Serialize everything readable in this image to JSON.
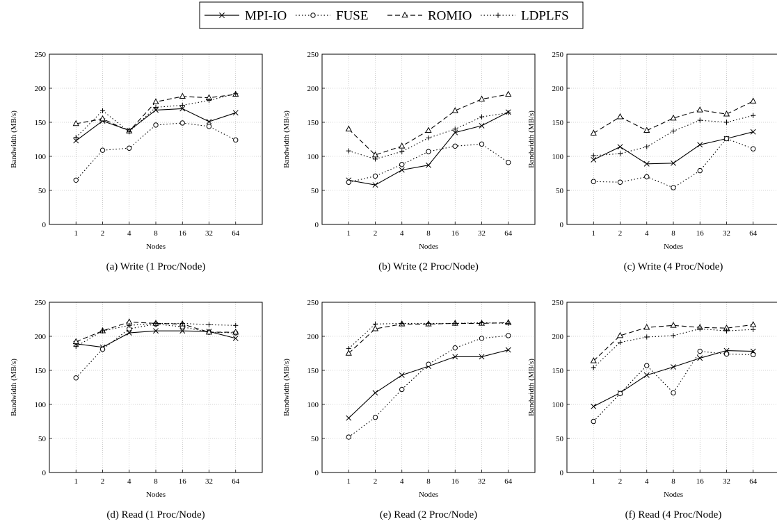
{
  "legend": {
    "entries": [
      {
        "name": "MPI-IO",
        "dash": "",
        "marker": "x"
      },
      {
        "name": "FUSE",
        "dash": "1.5 3",
        "marker": "o"
      },
      {
        "name": "ROMIO",
        "dash": "7 4",
        "marker": "triangle"
      },
      {
        "name": "LDPLFS",
        "dash": "1.5 3",
        "marker": "plus"
      }
    ]
  },
  "chart_data": [
    {
      "type": "line",
      "caption": "(a) Write (1 Proc/Node)",
      "xlabel": "Nodes",
      "ylabel": "Bandwidth (MB/s)",
      "categories": [
        "1",
        "2",
        "4",
        "8",
        "16",
        "32",
        "64"
      ],
      "ylim": [
        0,
        250
      ],
      "yticks": [
        0,
        50,
        100,
        150,
        200,
        250
      ],
      "grid": true,
      "series": [
        {
          "name": "MPI-IO",
          "values": [
            123,
            152,
            138,
            168,
            170,
            151,
            164
          ]
        },
        {
          "name": "FUSE",
          "values": [
            65,
            109,
            112,
            146,
            149,
            144,
            124
          ]
        },
        {
          "name": "ROMIO",
          "values": [
            148,
            155,
            137,
            180,
            188,
            186,
            191
          ]
        },
        {
          "name": "LDPLFS",
          "values": [
            128,
            167,
            136,
            172,
            175,
            182,
            192
          ]
        }
      ]
    },
    {
      "type": "line",
      "caption": "(b) Write (2 Proc/Node)",
      "xlabel": "Nodes",
      "ylabel": "Bandwidth (MB/s)",
      "categories": [
        "1",
        "2",
        "4",
        "8",
        "16",
        "32",
        "64"
      ],
      "ylim": [
        0,
        250
      ],
      "yticks": [
        0,
        50,
        100,
        150,
        200,
        250
      ],
      "grid": true,
      "series": [
        {
          "name": "MPI-IO",
          "values": [
            65,
            58,
            80,
            87,
            135,
            145,
            165
          ]
        },
        {
          "name": "FUSE",
          "values": [
            62,
            71,
            88,
            107,
            115,
            118,
            91
          ]
        },
        {
          "name": "ROMIO",
          "values": [
            140,
            102,
            115,
            138,
            167,
            184,
            191
          ]
        },
        {
          "name": "LDPLFS",
          "values": [
            108,
            96,
            107,
            127,
            140,
            158,
            164
          ]
        }
      ]
    },
    {
      "type": "line",
      "caption": "(c) Write (4 Proc/Node)",
      "xlabel": "Nodes",
      "ylabel": "Bandwidth (MB/s)",
      "categories": [
        "1",
        "2",
        "4",
        "8",
        "16",
        "32",
        "64"
      ],
      "ylim": [
        0,
        250
      ],
      "yticks": [
        0,
        50,
        100,
        150,
        200,
        250
      ],
      "grid": true,
      "series": [
        {
          "name": "MPI-IO",
          "values": [
            95,
            114,
            89,
            90,
            117,
            126,
            136
          ]
        },
        {
          "name": "FUSE",
          "values": [
            63,
            62,
            70,
            54,
            79,
            126,
            111
          ]
        },
        {
          "name": "ROMIO",
          "values": [
            134,
            158,
            138,
            156,
            168,
            162,
            181
          ]
        },
        {
          "name": "LDPLFS",
          "values": [
            101,
            104,
            114,
            137,
            153,
            150,
            160
          ]
        }
      ]
    },
    {
      "type": "line",
      "caption": "(d) Read (1 Proc/Node)",
      "xlabel": "Nodes",
      "ylabel": "Bandwidth (MB/s)",
      "categories": [
        "1",
        "2",
        "4",
        "8",
        "16",
        "32",
        "64"
      ],
      "ylim": [
        0,
        250
      ],
      "yticks": [
        0,
        50,
        100,
        150,
        200,
        250
      ],
      "grid": true,
      "series": [
        {
          "name": "MPI-IO",
          "values": [
            189,
            184,
            205,
            208,
            208,
            207,
            197
          ]
        },
        {
          "name": "FUSE",
          "values": [
            139,
            181,
            211,
            218,
            214,
            206,
            205
          ]
        },
        {
          "name": "ROMIO",
          "values": [
            192,
            208,
            221,
            219,
            218,
            206,
            206
          ]
        },
        {
          "name": "LDPLFS",
          "values": [
            185,
            208,
            216,
            219,
            219,
            217,
            216
          ]
        }
      ]
    },
    {
      "type": "line",
      "caption": "(e) Read (2 Proc/Node)",
      "xlabel": "Nodes",
      "ylabel": "Bandwidth (MB/s)",
      "categories": [
        "1",
        "2",
        "4",
        "8",
        "16",
        "32",
        "64"
      ],
      "ylim": [
        0,
        250
      ],
      "yticks": [
        0,
        50,
        100,
        150,
        200,
        250
      ],
      "grid": true,
      "series": [
        {
          "name": "MPI-IO",
          "values": [
            80,
            117,
            143,
            156,
            170,
            170,
            180
          ]
        },
        {
          "name": "FUSE",
          "values": [
            52,
            81,
            122,
            159,
            183,
            197,
            201
          ]
        },
        {
          "name": "ROMIO",
          "values": [
            175,
            211,
            218,
            218,
            219,
            219,
            220
          ]
        },
        {
          "name": "LDPLFS",
          "values": [
            182,
            218,
            219,
            219,
            219,
            220,
            219
          ]
        }
      ]
    },
    {
      "type": "line",
      "caption": "(f) Read (4 Proc/Node)",
      "xlabel": "Nodes",
      "ylabel": "Bandwidth (MB/s)",
      "categories": [
        "1",
        "2",
        "4",
        "8",
        "16",
        "32",
        "64"
      ],
      "ylim": [
        0,
        250
      ],
      "yticks": [
        0,
        50,
        100,
        150,
        200,
        250
      ],
      "grid": true,
      "series": [
        {
          "name": "MPI-IO",
          "values": [
            97,
            117,
            143,
            155,
            168,
            179,
            178
          ]
        },
        {
          "name": "FUSE",
          "values": [
            75,
            116,
            157,
            117,
            178,
            174,
            173
          ]
        },
        {
          "name": "ROMIO",
          "values": [
            164,
            201,
            213,
            216,
            213,
            212,
            217
          ]
        },
        {
          "name": "LDPLFS",
          "values": [
            154,
            191,
            199,
            201,
            211,
            208,
            210
          ]
        }
      ]
    }
  ]
}
